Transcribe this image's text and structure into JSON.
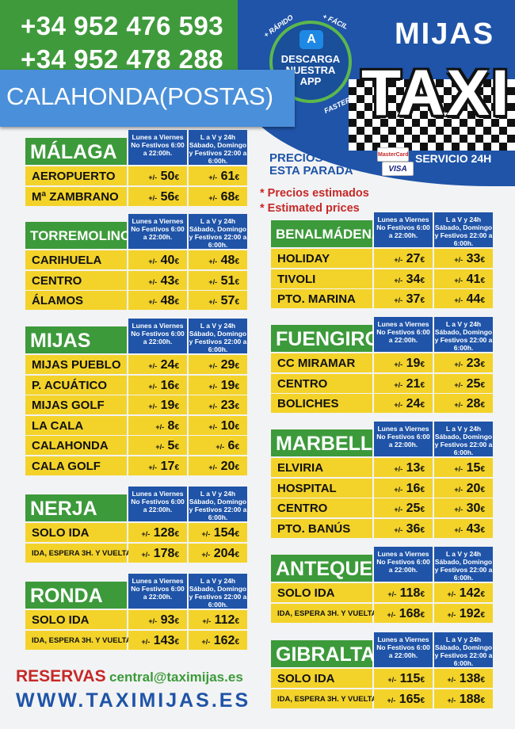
{
  "header": {
    "phone_1": "+34 952 476 593",
    "phone_2": "+34 952 478 288",
    "location": "CALAHONDA(POSTAS)",
    "app": {
      "tag_rapido": "+ RÁPIDO",
      "tag_facil": "+ FÁCIL",
      "tag_faster": "FASTER",
      "text": "DESCARGA NUESTRA APP"
    },
    "brand_top": "MIJAS",
    "brand_main": "TAXI",
    "service": "SERVICIO 24H",
    "prices_from": "PRECIOS DESDE ESTA PARADA",
    "card_1": "MasterCard",
    "card_2": "VISA",
    "note_es": "* Precios estimados",
    "note_en": "* Estimated prices"
  },
  "column_headers": {
    "weekday": "Lunes a Viernes No Festivos 6:00 a 22:00h.",
    "weekend": "L a V y 24h Sábado, Domingo y Festivos 22:00 a 6:00h."
  },
  "price_prefix": "+/-",
  "currency": "€",
  "tables": [
    {
      "city": "MÁLAGA",
      "rows": [
        {
          "dest": "AEROPUERTO",
          "day": "50",
          "night": "61"
        },
        {
          "dest": "Mª ZAMBRANO",
          "day": "56",
          "night": "68"
        }
      ]
    },
    {
      "city": "TORREMOLINOS",
      "rows": [
        {
          "dest": "CARIHUELA",
          "day": "40",
          "night": "48"
        },
        {
          "dest": "CENTRO",
          "day": "43",
          "night": "51"
        },
        {
          "dest": "ÁLAMOS",
          "day": "48",
          "night": "57"
        }
      ]
    },
    {
      "city": "MIJAS",
      "rows": [
        {
          "dest": "MIJAS PUEBLO",
          "day": "24",
          "night": "29"
        },
        {
          "dest": "P. ACUÁTICO",
          "day": "16",
          "night": "19"
        },
        {
          "dest": "MIJAS GOLF",
          "day": "19",
          "night": "23"
        },
        {
          "dest": "LA CALA",
          "day": "8",
          "night": "10"
        },
        {
          "dest": "CALAHONDA",
          "day": "5",
          "night": "6"
        },
        {
          "dest": "CALA GOLF",
          "day": "17",
          "night": "20"
        }
      ]
    },
    {
      "city": "NERJA",
      "rows": [
        {
          "dest": "SOLO IDA",
          "day": "128",
          "night": "154"
        },
        {
          "dest": "IDA, ESPERA 3H. Y VUELTA",
          "day": "178",
          "night": "204"
        }
      ]
    },
    {
      "city": "RONDA",
      "rows": [
        {
          "dest": "SOLO IDA",
          "day": "93",
          "night": "112"
        },
        {
          "dest": "IDA, ESPERA 3H. Y VUELTA",
          "day": "143",
          "night": "162"
        }
      ]
    },
    {
      "city": "BENALMÁDENA",
      "rows": [
        {
          "dest": "HOLIDAY",
          "day": "27",
          "night": "33"
        },
        {
          "dest": "TIVOLI",
          "day": "34",
          "night": "41"
        },
        {
          "dest": "PTO. MARINA",
          "day": "37",
          "night": "44"
        }
      ]
    },
    {
      "city": "FUENGIROLA",
      "rows": [
        {
          "dest": "CC MIRAMAR",
          "day": "19",
          "night": "23"
        },
        {
          "dest": "CENTRO",
          "day": "21",
          "night": "25"
        },
        {
          "dest": "BOLICHES",
          "day": "24",
          "night": "28"
        }
      ]
    },
    {
      "city": "MARBELLA",
      "rows": [
        {
          "dest": "ELVIRIA",
          "day": "13",
          "night": "15"
        },
        {
          "dest": "HOSPITAL",
          "day": "16",
          "night": "20"
        },
        {
          "dest": "CENTRO",
          "day": "25",
          "night": "30"
        },
        {
          "dest": "PTO. BANÚS",
          "day": "36",
          "night": "43"
        }
      ]
    },
    {
      "city": "ANTEQUERA",
      "rows": [
        {
          "dest": "SOLO IDA",
          "day": "118",
          "night": "142"
        },
        {
          "dest": "IDA, ESPERA 3H. Y VUELTA",
          "day": "168",
          "night": "192"
        }
      ]
    },
    {
      "city": "GIBRALTAR",
      "rows": [
        {
          "dest": "SOLO IDA",
          "day": "115",
          "night": "138"
        },
        {
          "dest": "IDA, ESPERA 3H. Y VUELTA",
          "day": "165",
          "night": "188"
        }
      ]
    }
  ],
  "footer": {
    "reservas_label": "RESERVAS",
    "email": "central@taximijas.es",
    "website": "WWW.TAXIMIJAS.ES"
  }
}
